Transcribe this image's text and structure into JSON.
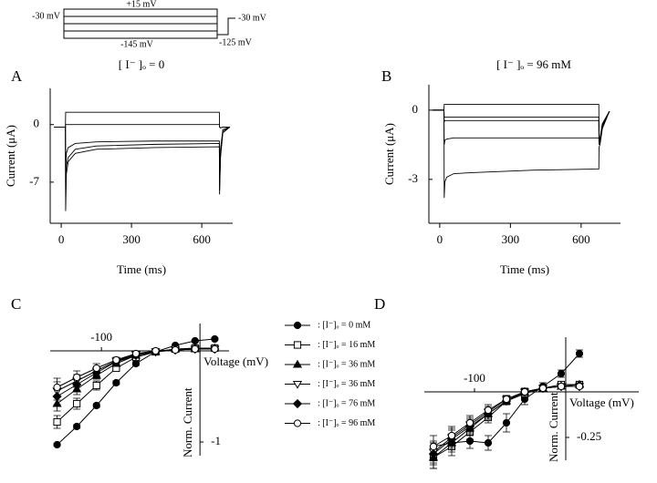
{
  "protocol": {
    "labels": [
      "-30 mV",
      "+15 mV",
      "-145 mV",
      "-30 mV",
      "-125 mV"
    ]
  },
  "chart_data": [
    {
      "type": "line",
      "panel": "A",
      "title": "[ I⁻ ]ₒ = 0",
      "xlabel": "Time (ms)",
      "ylabel": "Current (μA)",
      "xlim": [
        -47,
        732
      ],
      "ylim": [
        -12,
        4.4
      ],
      "xticks": [
        0,
        300,
        600
      ],
      "yticks": [
        0,
        -7
      ],
      "x": [
        -30,
        18,
        19,
        22,
        30,
        60,
        150,
        400,
        675,
        676,
        680,
        690,
        720
      ],
      "series": [
        {
          "color": "#000000",
          "values": [
            -0.3,
            -0.3,
            1.5,
            1.5,
            1.5,
            1.5,
            1.5,
            1.5,
            1.5,
            -0.3,
            -0.4,
            -0.3,
            -0.3
          ]
        },
        {
          "color": "#000000",
          "values": [
            -0.3,
            -0.3,
            0,
            0,
            0,
            0,
            0,
            0,
            0,
            -0.3,
            -0.4,
            -0.3,
            -0.3
          ]
        },
        {
          "color": "#000000",
          "values": [
            -0.3,
            -0.3,
            -6,
            -3.5,
            -2.8,
            -2.3,
            -2.1,
            -2,
            -2,
            -7,
            -3,
            -0.6,
            -0.3
          ]
        },
        {
          "color": "#000000",
          "values": [
            -0.3,
            -0.3,
            -9,
            -5,
            -4,
            -3,
            -2.6,
            -2.4,
            -2.3,
            -8,
            -3.5,
            -0.8,
            -0.3
          ]
        },
        {
          "color": "#000000",
          "values": [
            -0.3,
            -0.3,
            -10.5,
            -6,
            -4.5,
            -3.5,
            -3,
            -2.8,
            -2.7,
            -8.5,
            -4,
            -1,
            -0.3
          ]
        }
      ]
    },
    {
      "type": "line",
      "panel": "B",
      "title": "[ I⁻ ]ₒ = 96 mM",
      "xlabel": "Time (ms)",
      "ylabel": "Current (μA)",
      "xlim": [
        -46,
        767
      ],
      "ylim": [
        -4.9,
        1.1
      ],
      "xticks": [
        0,
        300,
        600
      ],
      "yticks": [
        0,
        -3
      ],
      "x": [
        -30,
        18,
        19,
        22,
        30,
        60,
        150,
        400,
        675,
        676,
        680,
        690,
        720
      ],
      "series": [
        {
          "color": "#000000",
          "values": [
            0,
            0,
            0.25,
            0.25,
            0.25,
            0.25,
            0.25,
            0.25,
            0.25,
            -1.3,
            -1.2,
            -0.6,
            -0.05
          ]
        },
        {
          "color": "#000000",
          "values": [
            0,
            0,
            -0.3,
            -0.3,
            -0.3,
            -0.3,
            -0.3,
            -0.3,
            -0.3,
            -1.4,
            -1.3,
            -0.6,
            -0.05
          ]
        },
        {
          "color": "#000000",
          "values": [
            0,
            0,
            -0.5,
            -0.45,
            -0.45,
            -0.45,
            -0.45,
            -0.45,
            -0.45,
            -1.45,
            -1.35,
            -0.65,
            -0.05
          ]
        },
        {
          "color": "#000000",
          "values": [
            0,
            0,
            -1.5,
            -1.3,
            -1.25,
            -1.2,
            -1.2,
            -1.2,
            -1.2,
            -1.5,
            -1.4,
            -0.7,
            -0.05
          ]
        },
        {
          "color": "#000000",
          "values": [
            0,
            0,
            -3.8,
            -3.1,
            -2.9,
            -2.75,
            -2.7,
            -2.6,
            -2.55,
            -1.6,
            -1.5,
            -0.8,
            -0.05
          ]
        }
      ]
    },
    {
      "type": "line",
      "panel": "C",
      "xlabel": "Voltage (mV)",
      "ylabel": "Norm. Current",
      "xlim": [
        -152,
        29.5
      ],
      "ylim": [
        -1.15,
        0.3
      ],
      "xticks": [
        -100
      ],
      "yticks": [
        -1
      ],
      "legend": "right",
      "x": [
        -145,
        -125,
        -105,
        -85,
        -65,
        -45,
        -25,
        -5,
        15
      ],
      "series": [
        {
          "name": ": [I⁻]ₒ = 0 mM",
          "color": "#000000",
          "marker": "circle-filled",
          "values": [
            -1.03,
            -0.83,
            -0.6,
            -0.35,
            -0.14,
            -0.01,
            0.06,
            0.11,
            0.13
          ],
          "errors": [
            0.01,
            0.02,
            0.02,
            0.02,
            0.02,
            0.01,
            0.01,
            0.01,
            0.01
          ]
        },
        {
          "name": ": [I⁻]ₒ = 16 mM",
          "color": "#000000",
          "marker": "square-open",
          "values": [
            -0.78,
            -0.58,
            -0.38,
            -0.19,
            -0.07,
            -0.01,
            0.02,
            0.03,
            0.03
          ],
          "errors": [
            0.07,
            0.06,
            0.05,
            0.03,
            0.02,
            0.01,
            0.01,
            0.01,
            0.01
          ]
        },
        {
          "name": ": [I⁻]ₒ = 36 mM",
          "color": "#000000",
          "marker": "triangle-filled",
          "values": [
            -0.58,
            -0.42,
            -0.27,
            -0.14,
            -0.05,
            -0.01,
            0.02,
            0.02,
            0.03
          ],
          "errors": [
            0.08,
            0.06,
            0.04,
            0.03,
            0.02,
            0.01,
            0.01,
            0.01,
            0.01
          ]
        },
        {
          "name": ": [I⁻]ₒ = 36 mM",
          "color": "#000000",
          "marker": "triangledown-open",
          "values": [
            -0.44,
            -0.33,
            -0.22,
            -0.11,
            -0.04,
            -0.01,
            0.01,
            0.02,
            0.02
          ],
          "errors": [
            0.1,
            0.07,
            0.05,
            0.03,
            0.02,
            0.01,
            0.01,
            0.01,
            0.01
          ]
        },
        {
          "name": ": [I⁻]ₒ = 76 mM",
          "color": "#000000",
          "marker": "diamond-filled",
          "values": [
            -0.5,
            -0.37,
            -0.24,
            -0.12,
            -0.05,
            -0.01,
            0.01,
            0.02,
            0.02
          ],
          "errors": [
            0.09,
            0.06,
            0.04,
            0.03,
            0.02,
            0.01,
            0.01,
            0.01,
            0.01
          ]
        },
        {
          "name": ": [I⁻]ₒ = 96 mM",
          "color": "#000000",
          "marker": "circle-open",
          "values": [
            -0.4,
            -0.29,
            -0.19,
            -0.1,
            -0.03,
            0,
            0.01,
            0.02,
            0.02
          ],
          "errors": [
            0.1,
            0.07,
            0.05,
            0.03,
            0.02,
            0.01,
            0.01,
            0.01,
            0.01
          ]
        }
      ]
    },
    {
      "type": "line",
      "panel": "D",
      "xlabel": "Voltage (mV)",
      "ylabel": "Norm. Current",
      "xlim": [
        -155,
        80
      ],
      "ylim": [
        -0.375,
        0.3
      ],
      "xticks": [
        -100
      ],
      "yticks": [
        -0.25
      ],
      "x": [
        -145,
        -125,
        -105,
        -85,
        -65,
        -45,
        -25,
        -5,
        15
      ],
      "series": [
        {
          "color": "#000000",
          "marker": "circle-filled",
          "values": [
            -0.3,
            -0.28,
            -0.27,
            -0.28,
            -0.17,
            -0.04,
            0.03,
            0.1,
            0.21
          ],
          "errors": [
            0.02,
            0.03,
            0.04,
            0.04,
            0.05,
            0.03,
            0.02,
            0.02,
            0.02
          ]
        },
        {
          "color": "#000000",
          "marker": "square-open",
          "values": [
            -0.36,
            -0.3,
            -0.22,
            -0.14,
            -0.05,
            -0.01,
            0.02,
            0.04,
            0.04
          ],
          "errors": [
            0.06,
            0.05,
            0.04,
            0.03,
            0.02,
            0.02,
            0.01,
            0.01,
            0.01
          ]
        },
        {
          "color": "#000000",
          "marker": "triangle-filled",
          "values": [
            -0.36,
            -0.28,
            -0.2,
            -0.12,
            -0.05,
            0,
            0.02,
            0.03,
            0.04
          ],
          "errors": [
            0.06,
            0.05,
            0.04,
            0.03,
            0.02,
            0.02,
            0.01,
            0.01,
            0.01
          ]
        },
        {
          "color": "#000000",
          "marker": "triangledown-open",
          "values": [
            -0.33,
            -0.25,
            -0.18,
            -0.11,
            -0.04,
            0,
            0.02,
            0.03,
            0.03
          ],
          "errors": [
            0.06,
            0.05,
            0.04,
            0.03,
            0.02,
            0.02,
            0.01,
            0.01,
            0.01
          ]
        },
        {
          "color": "#000000",
          "marker": "diamond-filled",
          "values": [
            -0.34,
            -0.26,
            -0.19,
            -0.12,
            -0.05,
            0,
            0.02,
            0.03,
            0.03
          ],
          "errors": [
            0.06,
            0.05,
            0.04,
            0.03,
            0.02,
            0.02,
            0.01,
            0.01,
            0.01
          ]
        },
        {
          "color": "#000000",
          "marker": "circle-open",
          "values": [
            -0.3,
            -0.24,
            -0.17,
            -0.1,
            -0.04,
            0,
            0.02,
            0.03,
            0.03
          ],
          "errors": [
            0.06,
            0.05,
            0.04,
            0.03,
            0.02,
            0.02,
            0.01,
            0.01,
            0.01
          ]
        }
      ]
    }
  ]
}
